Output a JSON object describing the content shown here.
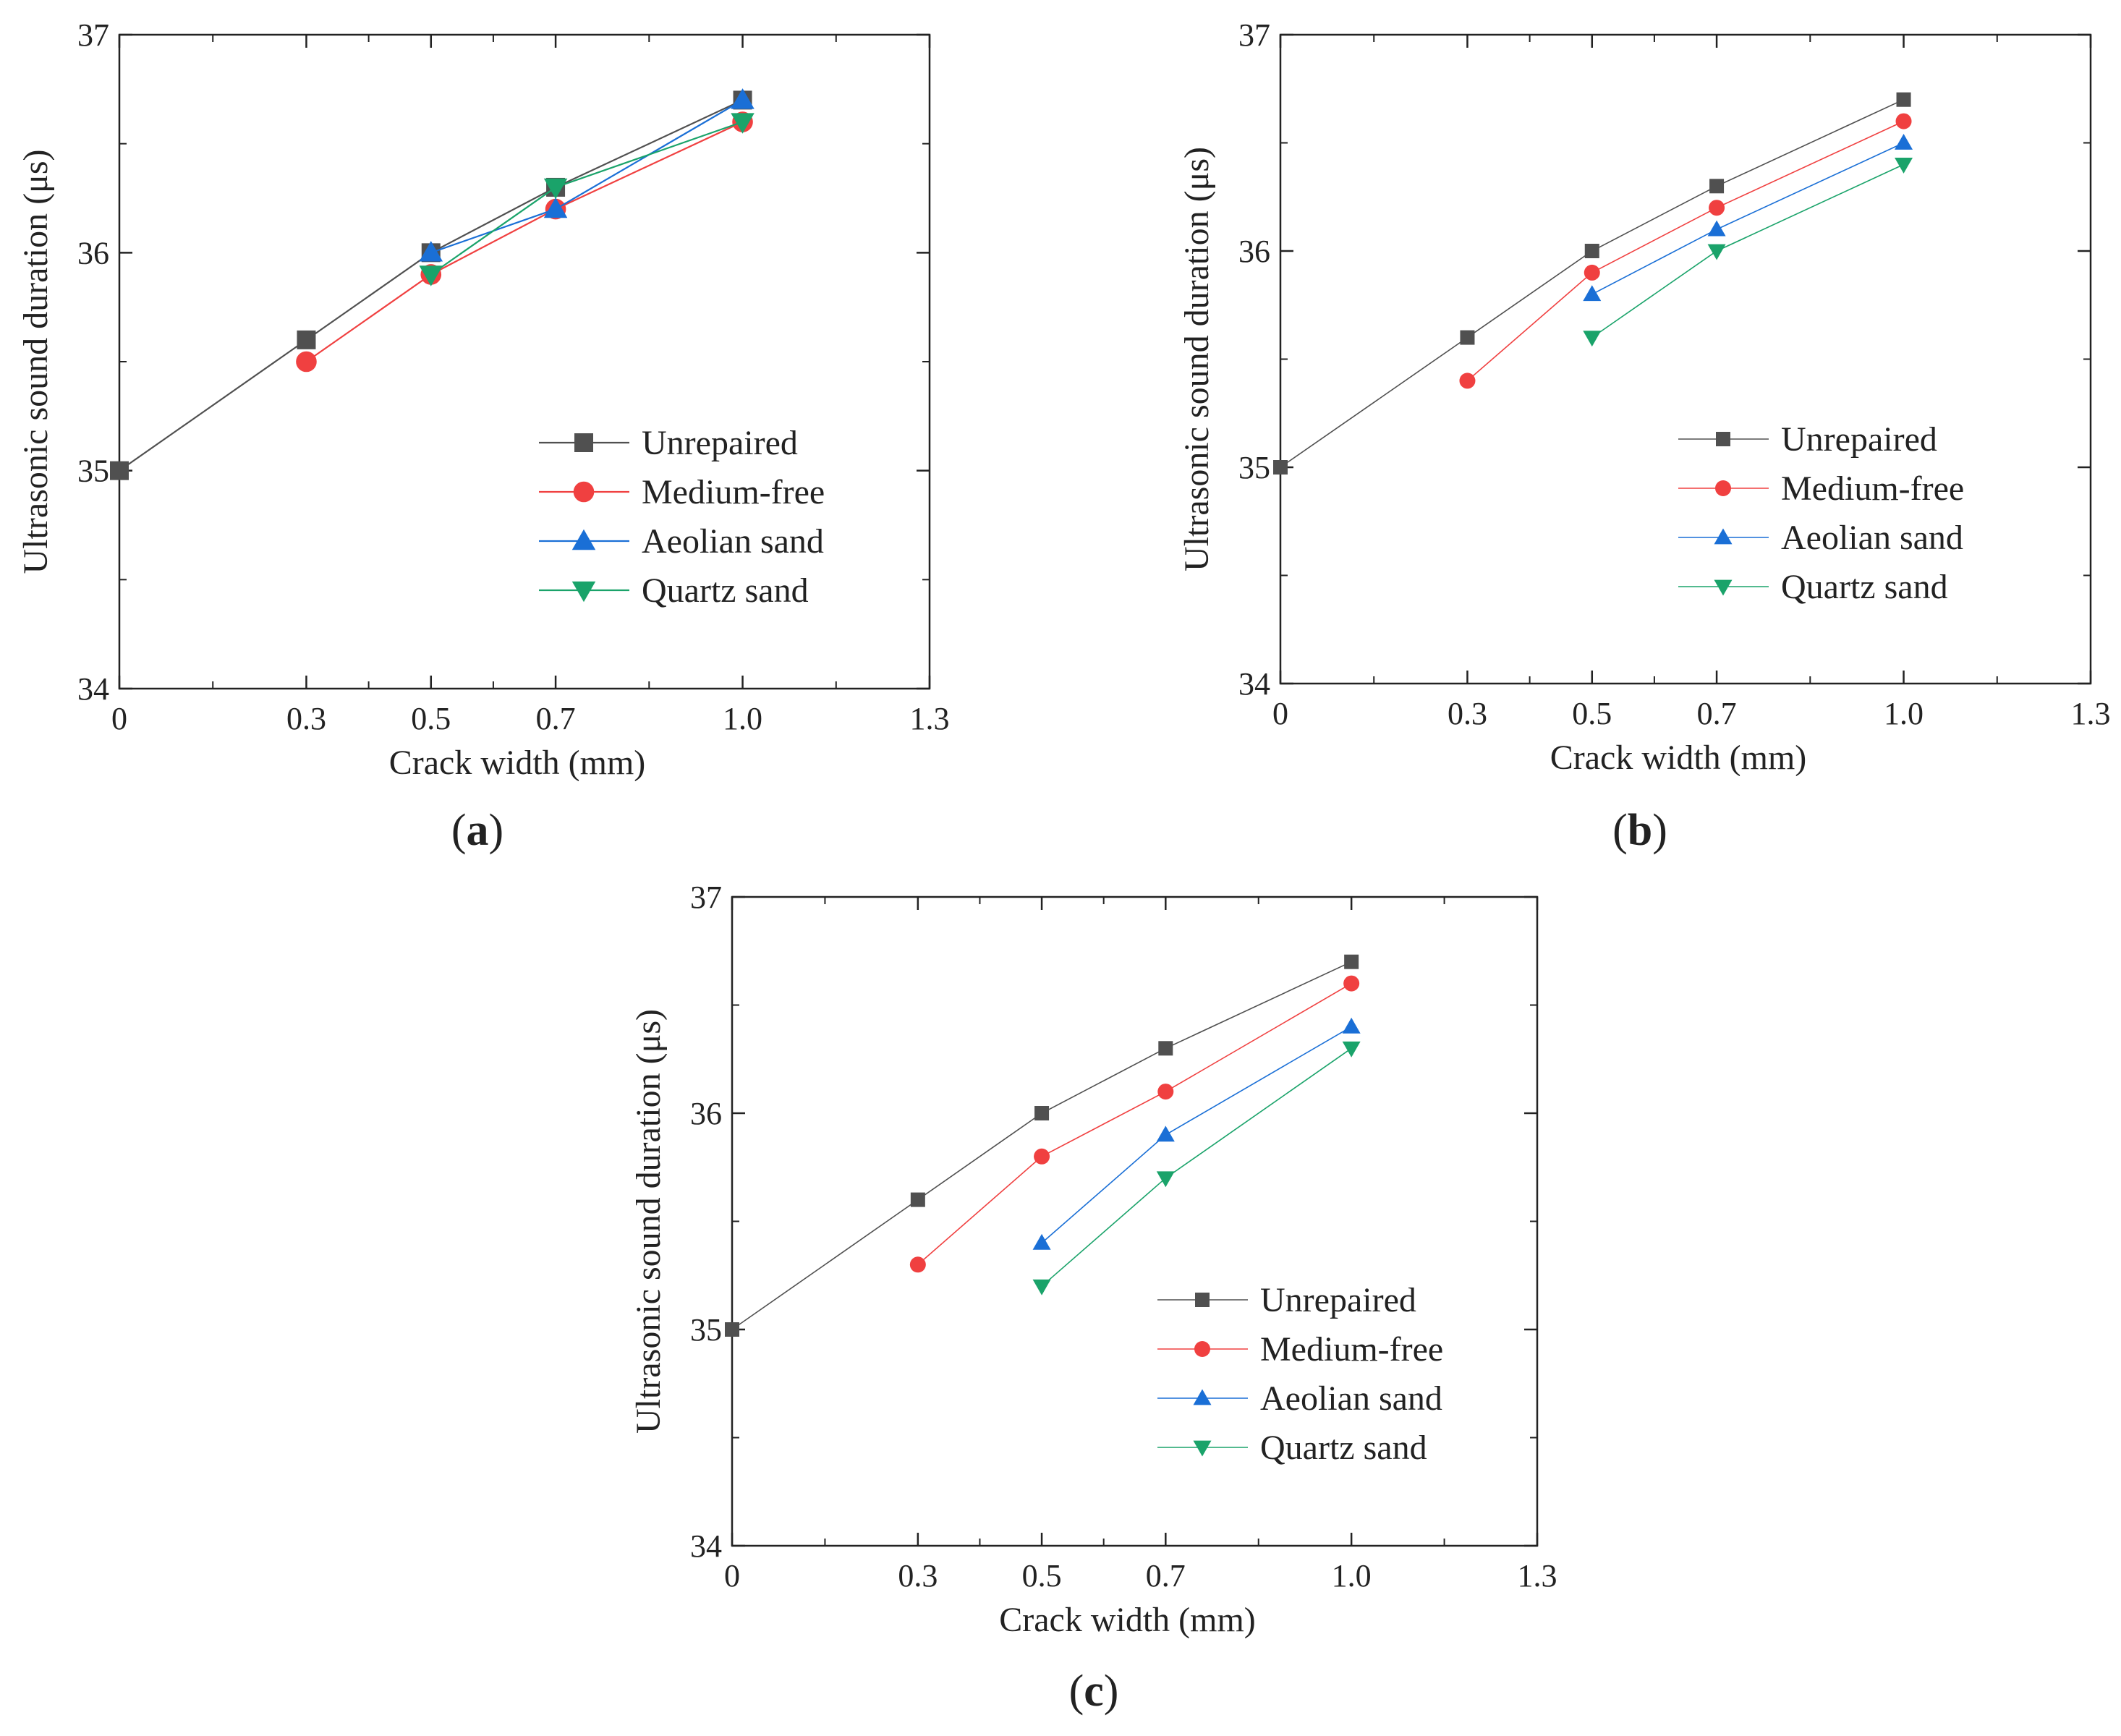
{
  "colors": {
    "Unrepaired": "#505050",
    "Medium-free": "#f04040",
    "Aeolian sand": "#1a6fd6",
    "Quartz sand": "#1aa36a"
  },
  "chart_data": [
    {
      "type": "line",
      "panel_label": "a",
      "xlabel": "Crack width (mm)",
      "ylabel": "Ultrasonic sound duration (μs)",
      "xlim": [
        0,
        1.3
      ],
      "ylim": [
        34,
        37
      ],
      "x_ticks": [
        0,
        0.3,
        0.5,
        0.7,
        1.0,
        1.3
      ],
      "x_tick_labels": [
        "0",
        "0.3",
        "0.5",
        "0.7",
        "1.0",
        "1.3"
      ],
      "y_ticks": [
        34,
        35,
        36,
        37
      ],
      "y_tick_labels": [
        "34",
        "35",
        "36",
        "37"
      ],
      "legend": [
        "Unrepaired",
        "Medium-free",
        "Aeolian sand",
        "Quartz sand"
      ],
      "series": [
        {
          "name": "Unrepaired",
          "marker": "square",
          "x": [
            0,
            0.3,
            0.5,
            0.7,
            1.0
          ],
          "values": [
            35.0,
            35.6,
            36.0,
            36.3,
            36.7
          ]
        },
        {
          "name": "Medium-free",
          "marker": "circle",
          "x": [
            0.3,
            0.5,
            0.7,
            1.0
          ],
          "values": [
            35.5,
            35.9,
            36.2,
            36.6
          ]
        },
        {
          "name": "Aeolian sand",
          "marker": "triangle-up",
          "x": [
            0.5,
            0.7,
            1.0
          ],
          "values": [
            36.0,
            36.2,
            36.7
          ]
        },
        {
          "name": "Quartz sand",
          "marker": "triangle-down",
          "x": [
            0.5,
            0.7,
            1.0
          ],
          "values": [
            35.9,
            36.3,
            36.6
          ]
        }
      ]
    },
    {
      "type": "line",
      "panel_label": "b",
      "xlabel": "Crack width (mm)",
      "ylabel": "Ultrasonic sound duration (μs)",
      "xlim": [
        0,
        1.3
      ],
      "ylim": [
        34,
        37
      ],
      "x_ticks": [
        0,
        0.3,
        0.5,
        0.7,
        1.0,
        1.3
      ],
      "x_tick_labels": [
        "0",
        "0.3",
        "0.5",
        "0.7",
        "1.0",
        "1.3"
      ],
      "y_ticks": [
        34,
        35,
        36,
        37
      ],
      "y_tick_labels": [
        "34",
        "35",
        "36",
        "37"
      ],
      "legend": [
        "Unrepaired",
        "Medium-free",
        "Aeolian sand",
        "Quartz sand"
      ],
      "series": [
        {
          "name": "Unrepaired",
          "marker": "square",
          "x": [
            0,
            0.3,
            0.5,
            0.7,
            1.0
          ],
          "values": [
            35.0,
            35.6,
            36.0,
            36.3,
            36.7
          ]
        },
        {
          "name": "Medium-free",
          "marker": "circle",
          "x": [
            0.3,
            0.5,
            0.7,
            1.0
          ],
          "values": [
            35.4,
            35.9,
            36.2,
            36.6
          ]
        },
        {
          "name": "Aeolian sand",
          "marker": "triangle-up",
          "x": [
            0.5,
            0.7,
            1.0
          ],
          "values": [
            35.8,
            36.1,
            36.5
          ]
        },
        {
          "name": "Quartz sand",
          "marker": "triangle-down",
          "x": [
            0.5,
            0.7,
            1.0
          ],
          "values": [
            35.6,
            36.0,
            36.4
          ]
        }
      ]
    },
    {
      "type": "line",
      "panel_label": "c",
      "xlabel": "Crack width (mm)",
      "ylabel": "Ultrasonic sound duration (μs)",
      "xlim": [
        0,
        1.3
      ],
      "ylim": [
        34,
        37
      ],
      "x_ticks": [
        0,
        0.3,
        0.5,
        0.7,
        1.0,
        1.3
      ],
      "x_tick_labels": [
        "0",
        "0.3",
        "0.5",
        "0.7",
        "1.0",
        "1.3"
      ],
      "y_ticks": [
        34,
        35,
        36,
        37
      ],
      "y_tick_labels": [
        "34",
        "35",
        "36",
        "37"
      ],
      "legend": [
        "Unrepaired",
        "Medium-free",
        "Aeolian sand",
        "Quartz sand"
      ],
      "series": [
        {
          "name": "Unrepaired",
          "marker": "square",
          "x": [
            0,
            0.3,
            0.5,
            0.7,
            1.0
          ],
          "values": [
            35.0,
            35.6,
            36.0,
            36.3,
            36.7
          ]
        },
        {
          "name": "Medium-free",
          "marker": "circle",
          "x": [
            0.3,
            0.5,
            0.7,
            1.0
          ],
          "values": [
            35.3,
            35.8,
            36.1,
            36.6
          ]
        },
        {
          "name": "Aeolian sand",
          "marker": "triangle-up",
          "x": [
            0.5,
            0.7,
            1.0
          ],
          "values": [
            35.4,
            35.9,
            36.4
          ]
        },
        {
          "name": "Quartz sand",
          "marker": "triangle-down",
          "x": [
            0.5,
            0.7,
            1.0
          ],
          "values": [
            35.2,
            35.7,
            36.3
          ]
        }
      ]
    }
  ]
}
